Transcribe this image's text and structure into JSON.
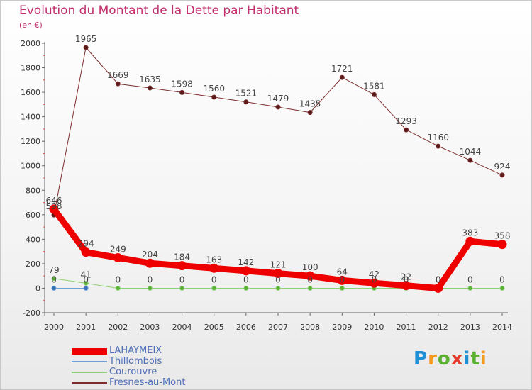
{
  "header": {
    "title": "Evolution du Montant de la Dette par Habitant",
    "unit": "(en €)"
  },
  "logo": {
    "text": "Proxiti"
  },
  "chart_data": {
    "type": "line",
    "x": [
      "2000",
      "2001",
      "2002",
      "2003",
      "2004",
      "2005",
      "2006",
      "2007",
      "2008",
      "2009",
      "2010",
      "2011",
      "2012",
      "2013",
      "2014"
    ],
    "ylim": [
      -200,
      2000
    ],
    "yticks": [
      -200,
      0,
      200,
      400,
      600,
      800,
      1000,
      1200,
      1400,
      1600,
      1800,
      2000
    ],
    "grid": false,
    "legend_position": "bottom-left",
    "series": [
      {
        "name": "Fresnes-au-Mont",
        "color": "#7b2d2d",
        "marker": "#5a1a1a",
        "width": 1,
        "values": [
          598,
          1965,
          1669,
          1635,
          1598,
          1560,
          1521,
          1479,
          1435,
          1721,
          1581,
          1293,
          1160,
          1044,
          924
        ],
        "labels": [
          "598",
          "1965",
          "1669",
          "1635",
          "1598",
          "1560",
          "1521",
          "1479",
          "1435",
          "1721",
          "1581",
          "1293",
          "1160",
          "1044",
          "924"
        ]
      },
      {
        "name": "Courouvre",
        "color": "#8fd07a",
        "marker": "#5bb033",
        "width": 1,
        "values": [
          79,
          41,
          0,
          0,
          0,
          0,
          0,
          0,
          0,
          0,
          0,
          0,
          0,
          0,
          0
        ],
        "labels": [
          "79",
          "41",
          "0",
          "0",
          "0",
          "0",
          "0",
          "0",
          "0",
          "0",
          "0",
          "0",
          "0",
          "0",
          "0"
        ]
      },
      {
        "name": "Thillombois",
        "color": "#6a9fd8",
        "marker": "#3a6fb8",
        "width": 1,
        "values": [
          0,
          0,
          null,
          null,
          null,
          null,
          null,
          null,
          null,
          null,
          null,
          null,
          null,
          null,
          null
        ],
        "labels": [
          "0",
          "0",
          "",
          "",
          "",
          "",
          "",
          "",
          "",
          "",
          "",
          "",
          "",
          "",
          ""
        ]
      },
      {
        "name": "LAHAYMEIX",
        "color": "#ee0000",
        "marker": "#ee0000",
        "width": 9,
        "values": [
          646,
          294,
          249,
          204,
          184,
          163,
          142,
          121,
          100,
          64,
          42,
          22,
          0,
          383,
          358
        ],
        "labels": [
          "646",
          "294",
          "249",
          "204",
          "184",
          "163",
          "142",
          "121",
          "100",
          "64",
          "42",
          "22",
          "0",
          "383",
          "358"
        ]
      }
    ]
  },
  "legend": [
    {
      "label": "LAHAYMEIX",
      "color": "#ee0000",
      "text_color": "#4f6fb8",
      "thickness": 9
    },
    {
      "label": "Thillombois",
      "color": "#6a9fd8",
      "text_color": "#4f6fb8",
      "thickness": 2
    },
    {
      "label": "Courouvre",
      "color": "#8fd07a",
      "text_color": "#4f6fb8",
      "thickness": 2
    },
    {
      "label": "Fresnes-au-Mont",
      "color": "#7b2d2d",
      "text_color": "#4f6fb8",
      "thickness": 2
    }
  ]
}
